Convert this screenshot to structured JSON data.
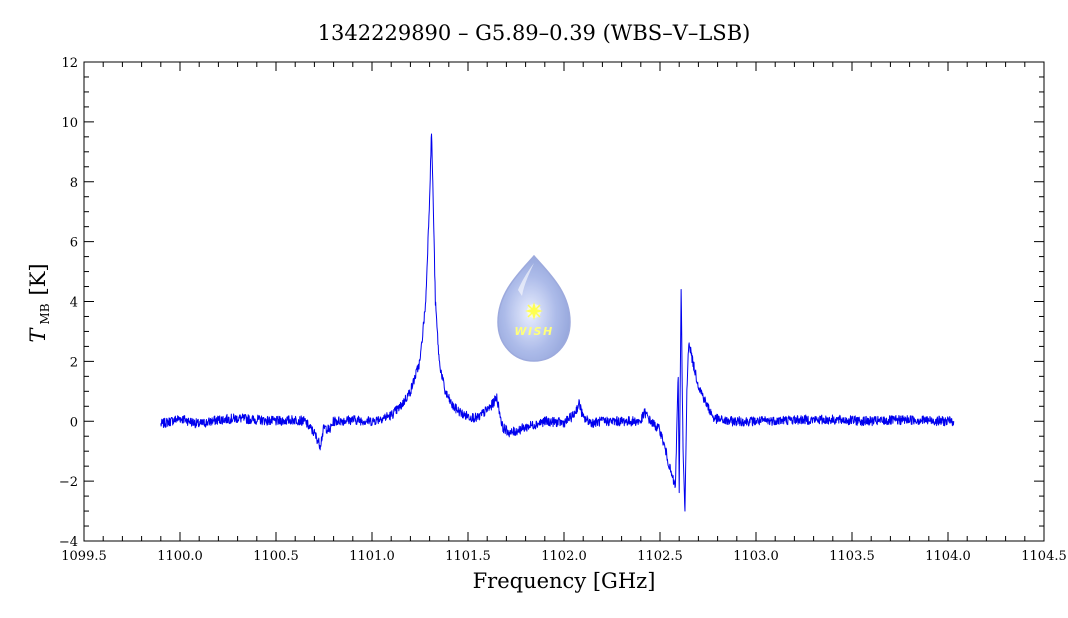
{
  "chart_data": {
    "type": "line",
    "title": "1342229890 – G5.89–0.39 (WBS–V–LSB)",
    "xlabel": "Frequency [GHz]",
    "ylabel_main": "T",
    "ylabel_sub": "MB",
    "ylabel_unit": "[K]",
    "xlim": [
      1099.5,
      1104.5
    ],
    "ylim": [
      -4,
      12
    ],
    "xticks": [
      1099.5,
      1100.0,
      1100.5,
      1101.0,
      1101.5,
      1102.0,
      1102.5,
      1103.0,
      1103.5,
      1104.0,
      1104.5
    ],
    "xtick_labels": [
      "1099.5",
      "1100.0",
      "1100.5",
      "1101.0",
      "1101.5",
      "1102.0",
      "1102.5",
      "1103.0",
      "1103.5",
      "1104.0",
      "1104.5"
    ],
    "yticks": [
      -4,
      -2,
      0,
      2,
      4,
      6,
      8,
      10,
      12
    ],
    "ytick_labels": [
      "−4",
      "−2",
      "0",
      "2",
      "4",
      "6",
      "8",
      "10",
      "12"
    ],
    "grid": false,
    "series": [
      {
        "color": "#0000ee",
        "x": [
          1099.9,
          1100.0,
          1100.1,
          1100.2,
          1100.3,
          1100.4,
          1100.5,
          1100.6,
          1100.65,
          1100.7,
          1100.73,
          1100.75,
          1100.78,
          1100.8,
          1100.9,
          1101.0,
          1101.1,
          1101.15,
          1101.2,
          1101.25,
          1101.28,
          1101.3,
          1101.31,
          1101.32,
          1101.33,
          1101.35,
          1101.38,
          1101.42,
          1101.48,
          1101.55,
          1101.62,
          1101.65,
          1101.68,
          1101.72,
          1101.8,
          1101.9,
          1102.0,
          1102.05,
          1102.08,
          1102.1,
          1102.15,
          1102.2,
          1102.3,
          1102.4,
          1102.42,
          1102.45,
          1102.5,
          1102.53,
          1102.56,
          1102.58,
          1102.595,
          1102.6,
          1102.61,
          1102.62,
          1102.63,
          1102.64,
          1102.65,
          1102.67,
          1102.7,
          1102.74,
          1102.78,
          1102.85,
          1103.0,
          1103.2,
          1103.4,
          1103.6,
          1103.8,
          1104.0,
          1104.03
        ],
        "y": [
          -0.1,
          0.1,
          -0.1,
          0.05,
          0.1,
          0.05,
          0.0,
          0.05,
          0.0,
          -0.4,
          -0.8,
          -0.2,
          -0.3,
          0.0,
          0.05,
          0.0,
          0.2,
          0.5,
          1.0,
          2.0,
          4.0,
          7.5,
          9.7,
          7.0,
          4.0,
          2.0,
          1.0,
          0.5,
          0.2,
          0.1,
          0.5,
          0.8,
          -0.2,
          -0.4,
          -0.2,
          0.0,
          -0.05,
          0.2,
          0.6,
          0.1,
          -0.05,
          0.0,
          0.0,
          0.0,
          0.3,
          0.0,
          -0.3,
          -1.0,
          -1.8,
          -2.2,
          1.6,
          -2.4,
          4.5,
          -1.0,
          -3.1,
          1.0,
          2.7,
          2.0,
          1.2,
          0.6,
          0.1,
          0.0,
          0.0,
          0.05,
          0.05,
          0.0,
          0.05,
          0.0,
          0.0
        ]
      }
    ],
    "watermark_text": "WISH"
  }
}
